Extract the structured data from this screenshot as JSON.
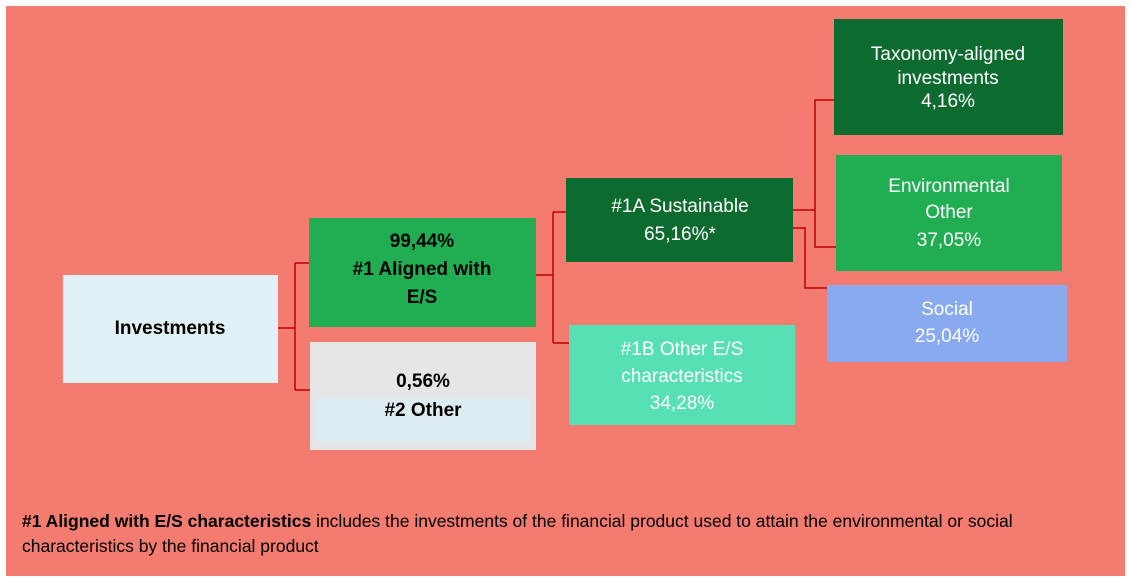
{
  "nodes": [
    {
      "lines": [
        "Investments"
      ]
    },
    {
      "lines": [
        "99,44%",
        "#1 Aligned with",
        "E/S"
      ]
    },
    {
      "lines": [
        "0,56%",
        "#2 Other"
      ]
    },
    {
      "lines": [
        "#1A Sustainable",
        "65,16%*"
      ]
    },
    {
      "lines": [
        "#1B Other E/S",
        "characteristics",
        "34,28%"
      ]
    },
    {
      "lines": [
        "Taxonomy-aligned",
        "investments",
        "4,16%"
      ]
    },
    {
      "lines": [
        "Environmental",
        "Other",
        "37,05%"
      ]
    },
    {
      "lines": [
        "Social",
        "25,04%"
      ]
    }
  ],
  "footnote": {
    "bold": "#1 Aligned with E/S characteristics",
    "text": "includes the investments of the financial product used to attain the environmental or social characteristics by the financial product"
  }
}
